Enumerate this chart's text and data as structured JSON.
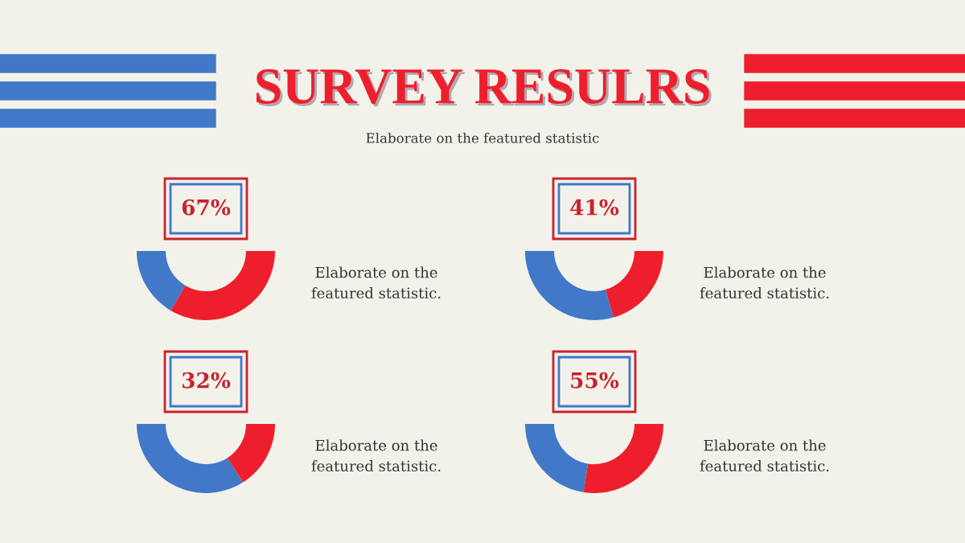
{
  "chart_data": [
    {
      "type": "other",
      "title": "SURVEY RESULRS",
      "subtitle": "Elaborate on the featured statistic"
    },
    {
      "type": "donut",
      "title": "67%",
      "categories": [
        null,
        null
      ],
      "values": [
        33,
        67
      ],
      "colors": [
        "#4178c8",
        "#ee1f2d"
      ],
      "annotations": [
        "Elaborate on the\nfeatured statistic."
      ]
    },
    {
      "type": "donut",
      "title": "41%",
      "categories": [
        null,
        null
      ],
      "values": [
        59,
        41
      ],
      "colors": [
        "#4178c8",
        "#ee1f2d"
      ],
      "annotations": [
        "Elaborate on the\nfeatured statistic."
      ]
    },
    {
      "type": "donut",
      "title": "32%",
      "categories": [
        null,
        null
      ],
      "values": [
        68,
        32
      ],
      "colors": [
        "#4178c8",
        "#ee1f2d"
      ],
      "annotations": [
        "Elaborate on the\nfeatured statistic."
      ]
    },
    {
      "type": "donut",
      "title": "55%",
      "categories": [
        null,
        null
      ],
      "values": [
        45,
        55
      ],
      "colors": [
        "#4178c8",
        "#ee1f2d"
      ],
      "annotations": [
        "Elaborate on the\nfeatured statistic."
      ]
    }
  ]
}
